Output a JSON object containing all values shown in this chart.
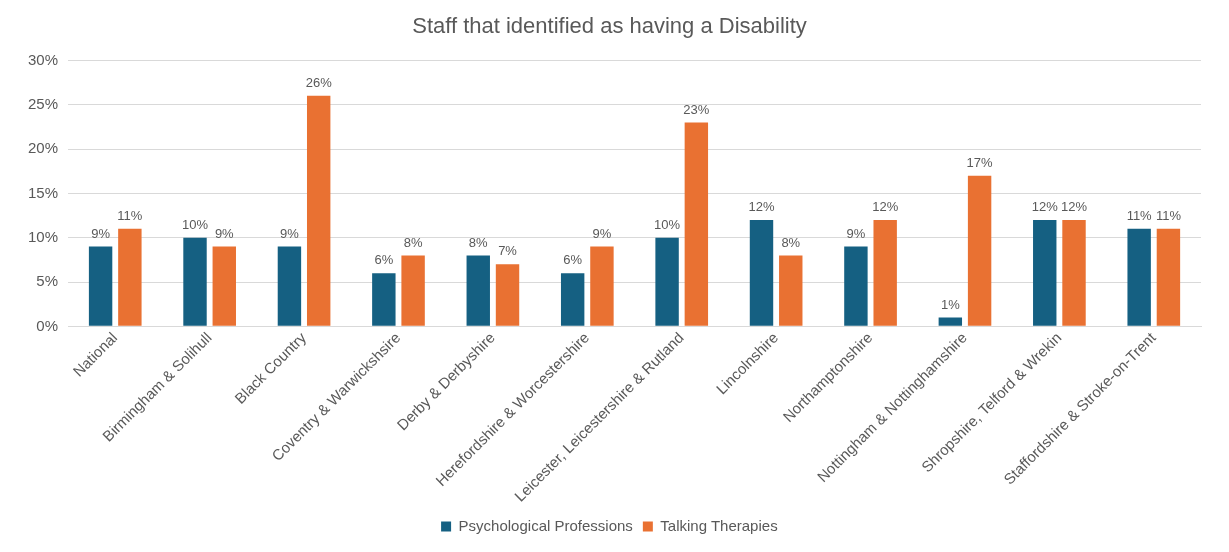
{
  "chart_data": {
    "type": "bar",
    "title": "Staff that identified as having a Disability",
    "categories": [
      "National",
      "Birmingham & Solihull",
      "Black Country",
      "Coventry & Warwickshsire",
      "Derby & Derbyshire",
      "Herefordshire & Worcestershire",
      "Leicester, Leicestershire & Rutland",
      "Lincolnshire",
      "Northamptonshire",
      "Nottingham & Nottinghamshire",
      "Shropshire, Telford & Wrekin",
      "Staffordshire & Stroke-on-Trent"
    ],
    "series": [
      {
        "name": "Psychological Professions",
        "color": "#156082",
        "values": [
          9,
          10,
          9,
          6,
          8,
          6,
          10,
          12,
          9,
          1,
          12,
          11
        ],
        "value_labels": [
          "9%",
          "10%",
          "9%",
          "6%",
          "8%",
          "6%",
          "10%",
          "12%",
          "9%",
          "1%",
          "12%",
          "11%"
        ]
      },
      {
        "name": "Talking Therapies",
        "color": "#e97132",
        "values": [
          11,
          9,
          26,
          8,
          7,
          9,
          23,
          8,
          12,
          17,
          12,
          11
        ],
        "value_labels": [
          "11%",
          "9%",
          "26%",
          "8%",
          "7%",
          "9%",
          "23%",
          "8%",
          "12%",
          "17%",
          "12%",
          "11%"
        ]
      }
    ],
    "ylim": [
      0,
      30
    ],
    "yticks": [
      {
        "value": 0,
        "label": "0%"
      },
      {
        "value": 5,
        "label": "5%"
      },
      {
        "value": 10,
        "label": "10%"
      },
      {
        "value": 15,
        "label": "15%"
      },
      {
        "value": 20,
        "label": "20%"
      },
      {
        "value": 25,
        "label": "25%"
      },
      {
        "value": 30,
        "label": "30%"
      }
    ],
    "grid": "y",
    "legend": "bottom"
  }
}
